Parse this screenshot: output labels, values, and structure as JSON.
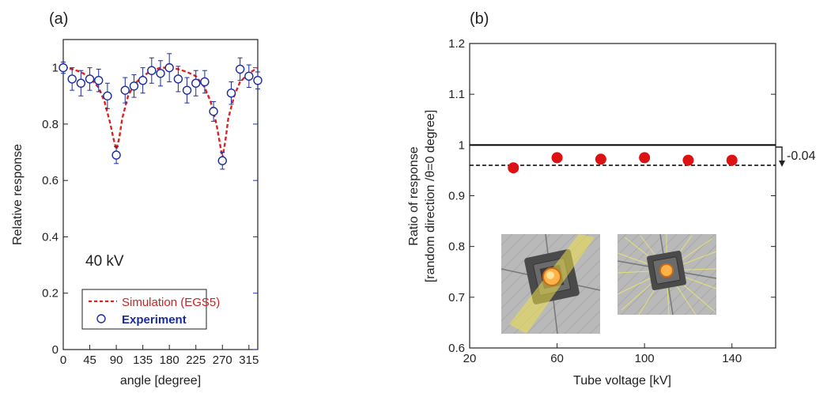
{
  "chart_data": [
    {
      "type": "scatter",
      "panel_label": "(a)",
      "xlabel": "angle [degree]",
      "ylabel": "Relative response",
      "xlim": [
        0,
        330
      ],
      "ylim": [
        0,
        1.1
      ],
      "xticks": [
        "0",
        "45",
        "90",
        "135",
        "180",
        "225",
        "270",
        "315"
      ],
      "xtick_values": [
        0,
        45,
        90,
        135,
        180,
        225,
        270,
        315
      ],
      "yticks": [
        "0",
        "0.2",
        "0.4",
        "0.6",
        "0.8",
        "1"
      ],
      "ytick_values": [
        0,
        0.2,
        0.4,
        0.6,
        0.8,
        1.0
      ],
      "annotation": "40 kV",
      "legend": {
        "position": "bottom-left",
        "entries": [
          "Simulation (EGS5)",
          "Experiment"
        ]
      },
      "series": [
        {
          "name": "Simulation (EGS5)",
          "style": "dashed-line",
          "color": "#dd2222",
          "x": [
            0,
            15,
            30,
            45,
            60,
            70,
            80,
            85,
            90,
            95,
            100,
            110,
            120,
            135,
            150,
            165,
            180,
            195,
            210,
            225,
            240,
            250,
            260,
            265,
            270,
            275,
            280,
            290,
            300,
            315,
            330
          ],
          "y": [
            1.0,
            0.995,
            0.985,
            0.965,
            0.93,
            0.88,
            0.8,
            0.75,
            0.71,
            0.75,
            0.82,
            0.9,
            0.94,
            0.97,
            0.99,
            1.0,
            1.0,
            0.995,
            0.985,
            0.97,
            0.93,
            0.88,
            0.8,
            0.74,
            0.68,
            0.74,
            0.82,
            0.9,
            0.95,
            0.98,
            1.0
          ]
        },
        {
          "name": "Experiment",
          "style": "open-circle-errorbar",
          "color": "#1a2b9e",
          "x": [
            0,
            15,
            30,
            45,
            60,
            75,
            90,
            105,
            120,
            135,
            150,
            165,
            180,
            195,
            210,
            225,
            240,
            255,
            270,
            285,
            300,
            315,
            330
          ],
          "y": [
            1.0,
            0.96,
            0.945,
            0.96,
            0.955,
            0.9,
            0.69,
            0.92,
            0.935,
            0.955,
            0.99,
            0.98,
            1.0,
            0.96,
            0.92,
            0.945,
            0.95,
            0.845,
            0.67,
            0.91,
            0.995,
            0.97,
            0.955
          ],
          "err": [
            0.02,
            0.04,
            0.045,
            0.04,
            0.04,
            0.045,
            0.03,
            0.045,
            0.04,
            0.045,
            0.045,
            0.045,
            0.05,
            0.045,
            0.045,
            0.045,
            0.04,
            0.035,
            0.03,
            0.04,
            0.04,
            0.04,
            0.03
          ]
        }
      ]
    },
    {
      "type": "scatter",
      "panel_label": "(b)",
      "xlabel": "Tube voltage [kV]",
      "ylabel_lines": [
        "Ratio of response",
        "[random direction /θ=0 degree]"
      ],
      "xlim": [
        20,
        160
      ],
      "ylim": [
        0.6,
        1.2
      ],
      "xticks": [
        "20",
        "60",
        "100",
        "140"
      ],
      "xtick_values": [
        20,
        60,
        100,
        140
      ],
      "yticks": [
        "0.6",
        "0.7",
        "0.8",
        "0.9",
        "1",
        "1.1",
        "1.2"
      ],
      "ytick_values": [
        0.6,
        0.7,
        0.8,
        0.9,
        1.0,
        1.1,
        1.2
      ],
      "reference_lines": [
        {
          "y": 1.0,
          "style": "solid",
          "color": "#000000"
        },
        {
          "y": 0.96,
          "style": "dashed",
          "color": "#000000"
        }
      ],
      "annotation": "-0.04",
      "series": [
        {
          "style": "filled-circle",
          "color": "#dd1111",
          "x": [
            40,
            60,
            80,
            100,
            120,
            140
          ],
          "y": [
            0.955,
            0.975,
            0.972,
            0.975,
            0.97,
            0.97
          ]
        }
      ]
    }
  ]
}
